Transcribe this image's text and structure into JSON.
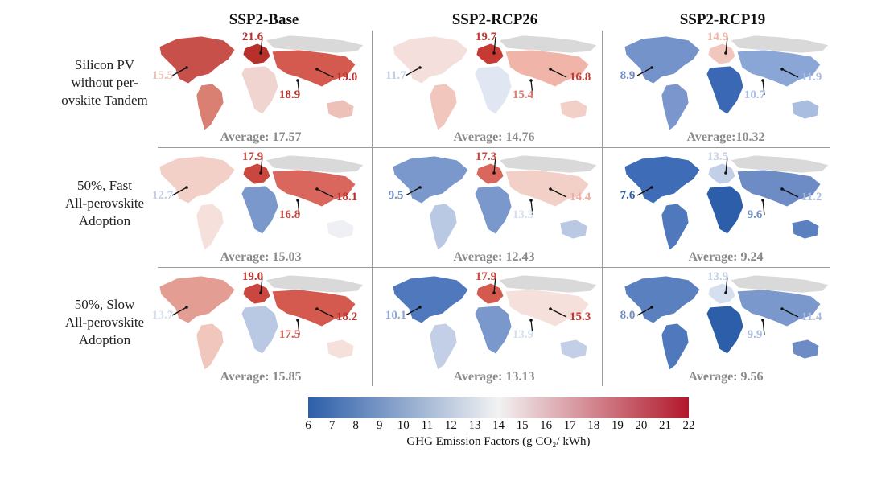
{
  "columns": [
    "SSP2-Base",
    "SSP2-RCP26",
    "SSP2-RCP19"
  ],
  "rows": [
    [
      "Silicon PV",
      "without per-",
      "ovskite Tandem"
    ],
    [
      "50%, Fast",
      "All-perovskite",
      "Adoption"
    ],
    [
      "50%, Slow",
      "All-perovskite",
      "Adoption"
    ]
  ],
  "panels": [
    {
      "average": "Average: 17.57",
      "colors": {
        "na": "#c8504a",
        "sa": "#d98073",
        "eu": "#b8302c",
        "af": "#f0d4cf",
        "as": "#d45a4f",
        "oc": "#eec1b8",
        "ru": "#d9d9d9"
      },
      "labels": [
        {
          "text": "21.6",
          "color": "#b8302c",
          "pos": "eu-top"
        },
        {
          "text": "15.5",
          "color": "#eec1b8",
          "pos": "left"
        },
        {
          "text": "19.0",
          "color": "#b8302c",
          "pos": "right"
        },
        {
          "text": "18.9",
          "color": "#b8302c",
          "pos": "bottom"
        }
      ]
    },
    {
      "average": "Average: 14.76",
      "colors": {
        "na": "#f5dfdc",
        "sa": "#f0c6bd",
        "eu": "#c63a33",
        "af": "#e0e6f2",
        "as": "#f0b5a8",
        "oc": "#f2d0c8",
        "ru": "#d9d9d9"
      },
      "labels": [
        {
          "text": "19.7",
          "color": "#c63a33",
          "pos": "eu-top"
        },
        {
          "text": "11.7",
          "color": "#c2cfe6",
          "pos": "left"
        },
        {
          "text": "16.8",
          "color": "#c63a33",
          "pos": "right"
        },
        {
          "text": "15.4",
          "color": "#d98073",
          "pos": "bottom"
        }
      ]
    },
    {
      "average": "Average:10.32",
      "colors": {
        "na": "#7593cb",
        "sa": "#7a96cc",
        "eu": "#f0c6bd",
        "af": "#3a68b5",
        "as": "#8aa6d6",
        "oc": "#a9bde0",
        "ru": "#d9d9d9"
      },
      "labels": [
        {
          "text": "14.9",
          "color": "#f0b5a8",
          "pos": "eu-top"
        },
        {
          "text": "8.9",
          "color": "#6d8bc5",
          "pos": "left"
        },
        {
          "text": "11.9",
          "color": "#a9bde0",
          "pos": "right"
        },
        {
          "text": "10.7",
          "color": "#a9bde0",
          "pos": "bottom"
        }
      ]
    },
    {
      "average": "Average: 15.03",
      "colors": {
        "na": "#f2d0c8",
        "sa": "#f5e0dc",
        "eu": "#c9473f",
        "af": "#7b98cd",
        "as": "#d9675d",
        "oc": "#eef0f5",
        "ru": "#d9d9d9"
      },
      "labels": [
        {
          "text": "17.9",
          "color": "#c9473f",
          "pos": "eu-top"
        },
        {
          "text": "12.7",
          "color": "#c2cfe6",
          "pos": "left"
        },
        {
          "text": "18.1",
          "color": "#b8302c",
          "pos": "right"
        },
        {
          "text": "16.8",
          "color": "#c9473f",
          "pos": "bottom"
        }
      ]
    },
    {
      "average": "Average: 12.43",
      "colors": {
        "na": "#7b98cd",
        "sa": "#b9c9e4",
        "eu": "#d9675d",
        "af": "#7b98cd",
        "as": "#f2d0c8",
        "oc": "#b9c9e4",
        "ru": "#d9d9d9"
      },
      "labels": [
        {
          "text": "17.3",
          "color": "#c9473f",
          "pos": "eu-top"
        },
        {
          "text": "9.5",
          "color": "#6d8bc5",
          "pos": "left"
        },
        {
          "text": "14.4",
          "color": "#eeb0a3",
          "pos": "right"
        },
        {
          "text": "13.3",
          "color": "#d6dff0",
          "pos": "bottom"
        }
      ]
    },
    {
      "average": "Average: 9.24",
      "colors": {
        "na": "#3f6cb7",
        "sa": "#4f78bd",
        "eu": "#c2cfe6",
        "af": "#2c5ea9",
        "as": "#6d8bc5",
        "oc": "#5a80c0",
        "ru": "#d9d9d9"
      },
      "labels": [
        {
          "text": "13.5",
          "color": "#c2cfe6",
          "pos": "eu-top"
        },
        {
          "text": "7.6",
          "color": "#2c5ea9",
          "pos": "left"
        },
        {
          "text": "11.2",
          "color": "#a9bde0",
          "pos": "right"
        },
        {
          "text": "9.6",
          "color": "#6d8bc5",
          "pos": "bottom"
        }
      ]
    },
    {
      "average": "Average: 15.85",
      "colors": {
        "na": "#e39d92",
        "sa": "#f0c6bd",
        "eu": "#c9473f",
        "af": "#b9c9e4",
        "as": "#d45a4f",
        "oc": "#f5e0dc",
        "ru": "#d9d9d9"
      },
      "labels": [
        {
          "text": "19.0",
          "color": "#b8302c",
          "pos": "eu-top"
        },
        {
          "text": "13.7",
          "color": "#d6dff0",
          "pos": "left"
        },
        {
          "text": "18.2",
          "color": "#b8302c",
          "pos": "right"
        },
        {
          "text": "17.5",
          "color": "#d45a4f",
          "pos": "bottom"
        }
      ]
    },
    {
      "average": "Average: 13.13",
      "colors": {
        "na": "#4f78bd",
        "sa": "#c2cfe6",
        "eu": "#d45a4f",
        "af": "#7b98cd",
        "as": "#f5e0dc",
        "oc": "#c2cfe6",
        "ru": "#d9d9d9"
      },
      "labels": [
        {
          "text": "17.9",
          "color": "#c9473f",
          "pos": "eu-top"
        },
        {
          "text": "10.1",
          "color": "#8aa6d6",
          "pos": "left"
        },
        {
          "text": "15.3",
          "color": "#c63a33",
          "pos": "right"
        },
        {
          "text": "13.9",
          "color": "#d6dff0",
          "pos": "bottom"
        }
      ]
    },
    {
      "average": "Average: 9.56",
      "colors": {
        "na": "#5a80c0",
        "sa": "#4f78bd",
        "eu": "#d6dff0",
        "af": "#2c5ea9",
        "as": "#7b98cd",
        "oc": "#6d8bc5",
        "ru": "#d9d9d9"
      },
      "labels": [
        {
          "text": "13.9",
          "color": "#c2cfe6",
          "pos": "eu-top"
        },
        {
          "text": "8.0",
          "color": "#6d8bc5",
          "pos": "left"
        },
        {
          "text": "11.4",
          "color": "#a9bde0",
          "pos": "right"
        },
        {
          "text": "9.9",
          "color": "#a9bde0",
          "pos": "bottom"
        }
      ]
    }
  ],
  "colorbar": {
    "ticks": [
      "6",
      "7",
      "8",
      "9",
      "10",
      "11",
      "12",
      "13",
      "14",
      "15",
      "16",
      "17",
      "18",
      "19",
      "20",
      "21",
      "22"
    ],
    "label": "GHG Emission Factors (g CO₂/ kWh)",
    "low_color": "#2c5ea9",
    "mid_color": "#f2f2f2",
    "high_color": "#b2182b"
  }
}
